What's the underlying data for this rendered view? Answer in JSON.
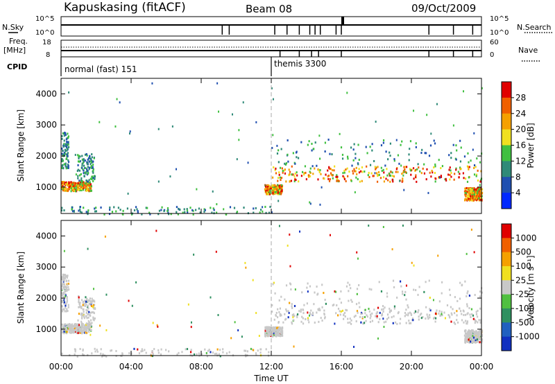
{
  "header": {
    "station": "Kapuskasing (fitACF)",
    "beam": "Beam 08",
    "date": "09/Oct/2009"
  },
  "top_panels": {
    "nsky_label": "N.Sky",
    "nsearch_label": "N.Search",
    "nsky_ticks": [
      "10^5",
      "10^0"
    ],
    "nsearch_ticks": [
      "10^5",
      "10^0"
    ],
    "freq_label_1": "Freq.",
    "freq_label_2": "[MHz]",
    "freq_ticks": [
      "18",
      "8"
    ],
    "nave_label": "Nave",
    "nave_ticks": [
      "60",
      "0"
    ],
    "cpid_label": "CPID"
  },
  "modes": [
    {
      "label": "normal (fast) 151",
      "start_hour": 0
    },
    {
      "label": "themis 3300",
      "start_hour": 12
    }
  ],
  "chart_data": [
    {
      "type": "heatmap",
      "name": "power",
      "ylabel": "Slant Range [km]",
      "ylim": [
        150,
        4500
      ],
      "yticks": [
        1000,
        2000,
        3000,
        4000
      ],
      "xlim": [
        0,
        24
      ],
      "xticks": [
        "00:00",
        "04:00",
        "08:00",
        "12:00",
        "16:00",
        "20:00",
        "00:00"
      ],
      "xlabel": "Time UT",
      "colorbar": {
        "label": "Power [dB]",
        "ticks": [
          "4",
          "8",
          "12",
          "16",
          "20",
          "24",
          "28"
        ],
        "colors": [
          "#0028ff",
          "#2050b0",
          "#2f8a78",
          "#40c040",
          "#f0e020",
          "#f5a000",
          "#f06000",
          "#e00000"
        ]
      },
      "echo_regions": [
        {
          "t": [
            0.0,
            1.7
          ],
          "r": [
            900,
            1200
          ],
          "level": "strong"
        },
        {
          "t": [
            0.0,
            0.4
          ],
          "r": [
            1600,
            2800
          ],
          "level": "moderate"
        },
        {
          "t": [
            0.9,
            1.9
          ],
          "r": [
            1200,
            2100
          ],
          "level": "weak"
        },
        {
          "t": [
            11.6,
            12.6
          ],
          "r": [
            800,
            1100
          ],
          "level": "strong"
        },
        {
          "t": [
            12.0,
            24.0
          ],
          "r": [
            1200,
            1700
          ],
          "level": "strong"
        },
        {
          "t": [
            12.0,
            24.0
          ],
          "r": [
            1700,
            2600
          ],
          "level": "weak"
        },
        {
          "t": [
            23.0,
            24.0
          ],
          "r": [
            600,
            1000
          ],
          "level": "strong"
        },
        {
          "t": [
            0.0,
            12.0
          ],
          "r": [
            150,
            400
          ],
          "level": "weak"
        }
      ]
    },
    {
      "type": "heatmap",
      "name": "velocity",
      "ylabel": "Slant Range [km]",
      "ylim": [
        150,
        4500
      ],
      "yticks": [
        1000,
        2000,
        3000,
        4000
      ],
      "xlim": [
        0,
        24
      ],
      "xticks": [
        "00:00",
        "04:00",
        "08:00",
        "12:00",
        "16:00",
        "20:00",
        "00:00"
      ],
      "xlabel": "Time UT",
      "colorbar": {
        "label": "Velocity [m s⁻¹]",
        "ticks": [
          "1000",
          "500",
          "100",
          "25",
          "-25",
          "-100",
          "-500",
          "-1000"
        ],
        "colors": [
          "#1030c0",
          "#2060c0",
          "#2f9060",
          "#50c040",
          "#c8c8c8",
          "#f0e020",
          "#f5a000",
          "#f06000",
          "#e00000"
        ]
      },
      "dominant": "ground scatter (grey)"
    }
  ],
  "colors": {
    "grey_scatter": "#c8c8c8",
    "dashed_marker": "#aaaaaa"
  }
}
